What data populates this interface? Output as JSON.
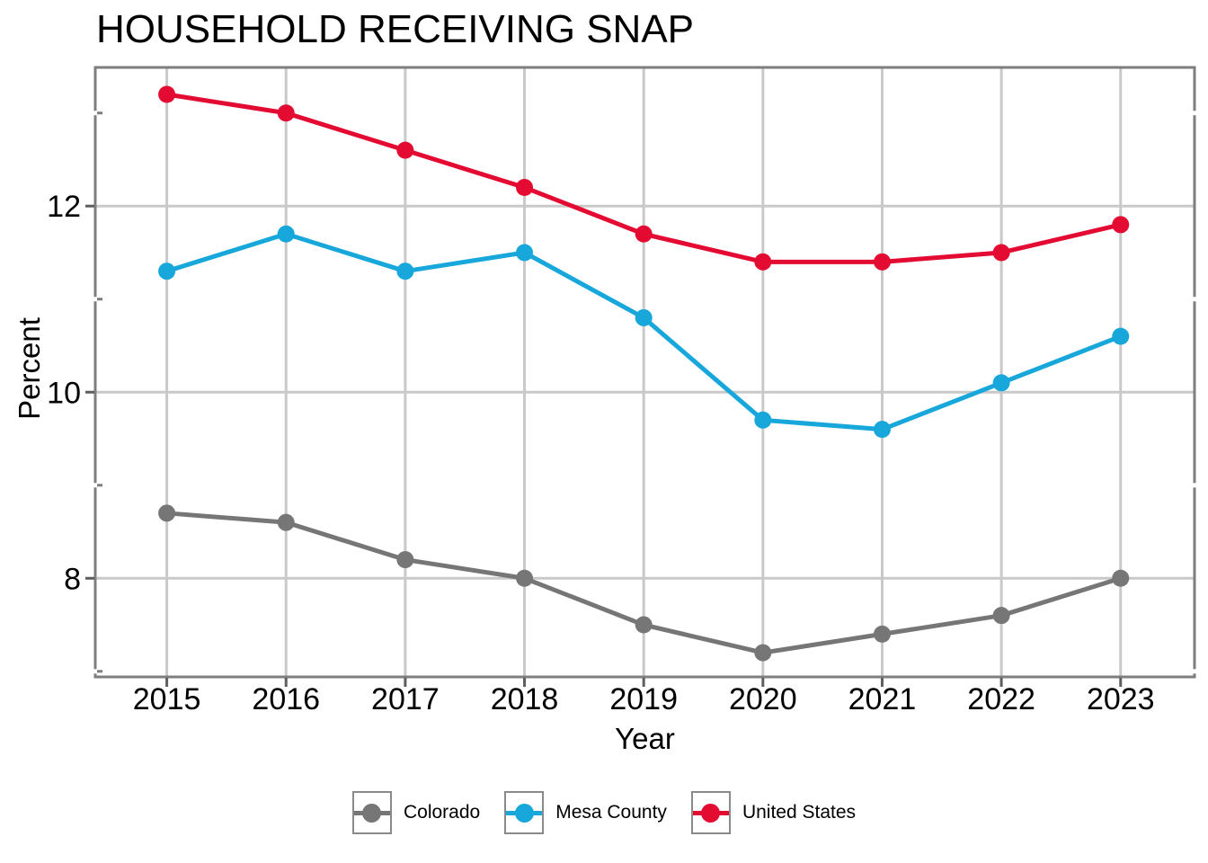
{
  "title": "HOUSEHOLD RECEIVING SNAP",
  "chart_data": {
    "type": "line",
    "title": "HOUSEHOLD RECEIVING SNAP",
    "xlabel": "Year",
    "ylabel": "Percent",
    "x": [
      2015,
      2016,
      2017,
      2018,
      2019,
      2020,
      2021,
      2022,
      2023
    ],
    "x_tick_labels": [
      "2015",
      "2016",
      "2017",
      "2018",
      "2019",
      "2020",
      "2021",
      "2022",
      "2023"
    ],
    "y_ticks": [
      8,
      10,
      12
    ],
    "y_tick_labels": [
      "8",
      "10",
      "12"
    ],
    "y_minor_ticks": [
      7,
      9,
      11,
      13
    ],
    "xlim": [
      2014.4,
      2023.62
    ],
    "ylim": [
      6.94,
      13.49
    ],
    "grid": true,
    "legend_position": "bottom",
    "series": [
      {
        "name": "Colorado",
        "color": "#767676",
        "values": [
          8.7,
          8.6,
          8.2,
          8.0,
          7.5,
          7.2,
          7.4,
          7.6,
          8.0
        ]
      },
      {
        "name": "Mesa County",
        "color": "#17A7DB",
        "values": [
          11.3,
          11.7,
          11.3,
          11.5,
          10.8,
          9.7,
          9.6,
          10.1,
          10.6
        ]
      },
      {
        "name": "United States",
        "color": "#E30B32",
        "values": [
          13.2,
          13.0,
          12.6,
          12.2,
          11.7,
          11.4,
          11.4,
          11.5,
          11.8
        ]
      }
    ],
    "style_colors": {
      "gridline": "#C9C9C9",
      "panel_border": "#7E7E7E",
      "tick": "#5E5E5E",
      "text": "#000000",
      "background": "#FFFFFF"
    }
  }
}
